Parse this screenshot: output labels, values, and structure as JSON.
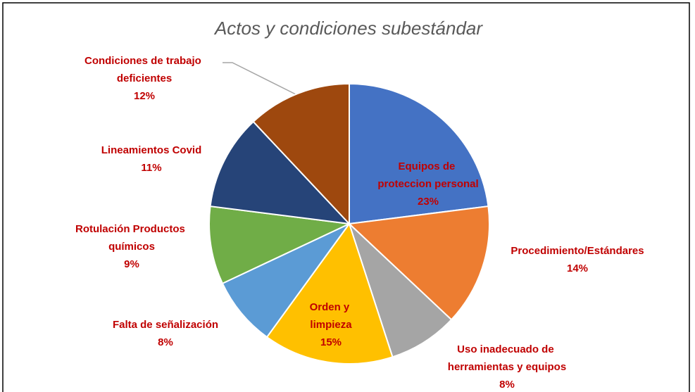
{
  "chart_data": {
    "type": "pie",
    "title": "Actos y condiciones  subestándar",
    "categories": [
      "Equipos de proteccion personal",
      "Procedimiento/Estándares",
      "Uso inadecuado de herramientas y equipos",
      "Orden y limpieza",
      "Falta de señalización",
      "Rotulación Productos químicos",
      "Lineamientos Covid",
      "Condiciones de trabajo deficientes"
    ],
    "values": [
      23,
      14,
      8,
      15,
      8,
      9,
      11,
      12
    ],
    "value_labels": [
      "23%",
      "14%",
      "8%",
      "15%",
      "8%",
      "9%",
      "11%",
      "12%"
    ],
    "colors": [
      "#4472c4",
      "#ed7d31",
      "#a5a5a5",
      "#ffc000",
      "#5b9bd5",
      "#70ad47",
      "#264478",
      "#9e480e"
    ]
  }
}
